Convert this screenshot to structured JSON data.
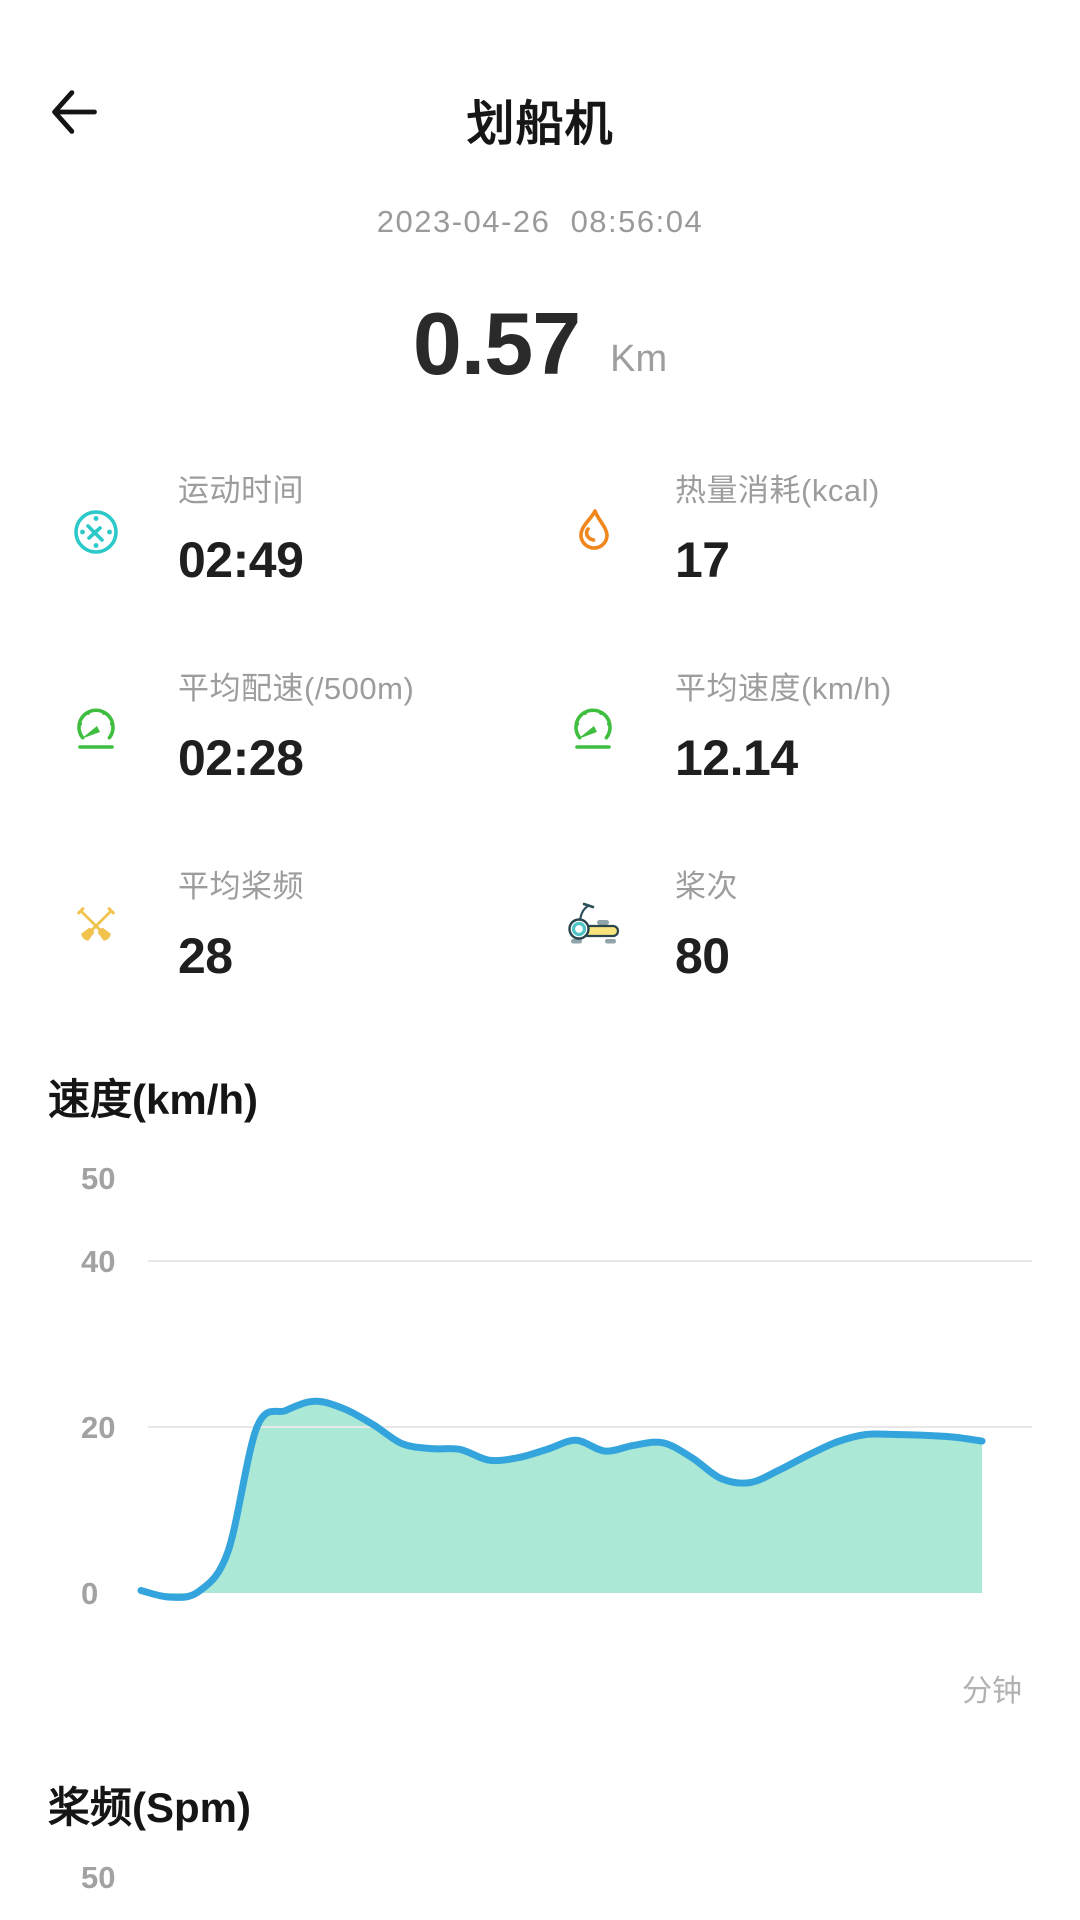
{
  "header": {
    "title": "划船机",
    "back_icon": "arrow-left-icon"
  },
  "session": {
    "datetime": "2023-04-26  08:56:04",
    "distance_value": "0.57",
    "distance_unit": "Km"
  },
  "stats": {
    "items": [
      {
        "icon": "timer-icon",
        "label": "运动时间",
        "value": "02:49"
      },
      {
        "icon": "flame-icon",
        "label": "热量消耗(kcal)",
        "value": "17"
      },
      {
        "icon": "pace-gauge-icon",
        "label": "平均配速(/500m)",
        "value": "02:28"
      },
      {
        "icon": "speed-gauge-icon",
        "label": "平均速度(km/h)",
        "value": "12.14"
      },
      {
        "icon": "oars-icon",
        "label": "平均桨频",
        "value": "28"
      },
      {
        "icon": "rowing-machine-icon",
        "label": "桨次",
        "value": "80"
      }
    ]
  },
  "colors": {
    "text_primary": "#1f1f1f",
    "text_gray": "#9d9d9d",
    "grid_line": "#e8e8e8",
    "chart_line_blue": "#34a4dc",
    "chart_fill_mint": "#abe8d6",
    "icon_teal": "#2cc9c9",
    "icon_orange": "#f0861c",
    "icon_green": "#3fbe3f",
    "icon_yellow": "#f2c24f"
  },
  "chart_data": [
    {
      "type": "area",
      "title": "速度(km/h)",
      "xlabel": "分钟",
      "ylabel": "",
      "ylim": [
        0,
        50
      ],
      "yticks": [
        50,
        40,
        20,
        0
      ],
      "gridline_values": [
        40,
        20
      ],
      "x_ticks": [],
      "legend": "none",
      "values": [
        0.3,
        -0.5,
        0.2,
        5,
        20,
        22,
        23.1,
        22.2,
        20.3,
        18.0,
        17.4,
        17.3,
        16.0,
        16.3,
        17.3,
        18.4,
        17.1,
        17.8,
        18.1,
        16.3,
        13.8,
        13.3,
        14.8,
        16.6,
        18.2,
        19.1,
        19.1,
        19.0,
        18.8,
        18.3
      ],
      "line_color": "#34a4dc",
      "fill_color": "#abe8d6"
    },
    {
      "type": "area",
      "title": "桨频(Spm)",
      "ylim": [
        0,
        50
      ],
      "yticks": [
        50
      ],
      "values": [],
      "note": "chart area cut off at bottom edge of screenshot"
    }
  ]
}
